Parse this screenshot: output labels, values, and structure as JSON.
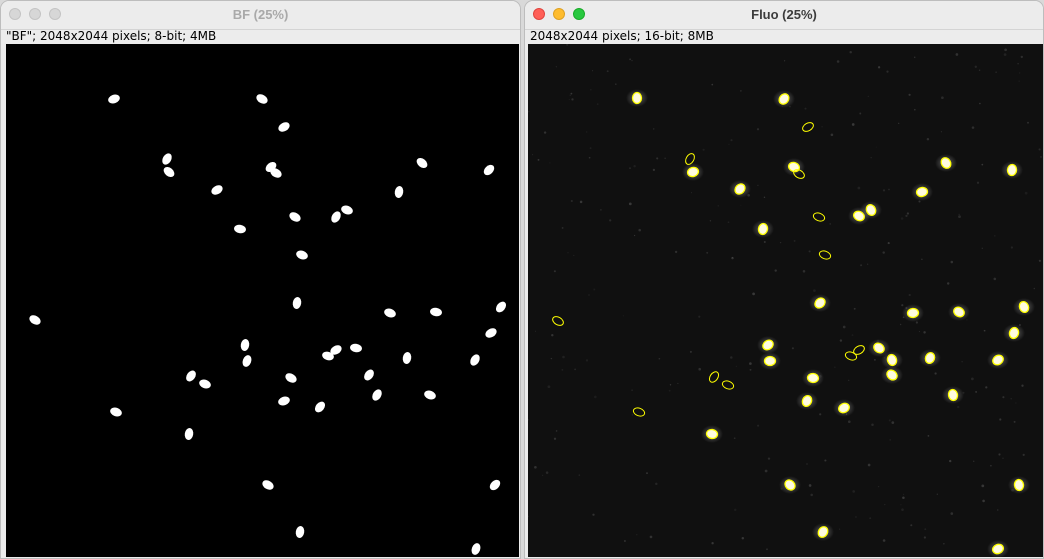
{
  "windows": {
    "bf": {
      "title": "BF (25%)",
      "info": "\"BF\"; 2048x2044 pixels; 8-bit; 4MB",
      "controls": [
        "close-icon",
        "minimize-icon",
        "zoom-icon"
      ],
      "state": "inactive"
    },
    "fluo": {
      "title": "Fluo (25%)",
      "info": "2048x2044 pixels; 16-bit; 8MB",
      "controls": [
        "close-icon",
        "minimize-icon",
        "zoom-icon"
      ],
      "state": "active"
    }
  },
  "colors": {
    "mask_background": "#000000",
    "mask_object": "#ffffff",
    "fluo_background": "#101010",
    "fluo_spot": "#fffbe0",
    "roi_outline": "#ffff00",
    "close": "#ff5f57",
    "minimize": "#febc2e",
    "zoom": "#28c840"
  }
}
